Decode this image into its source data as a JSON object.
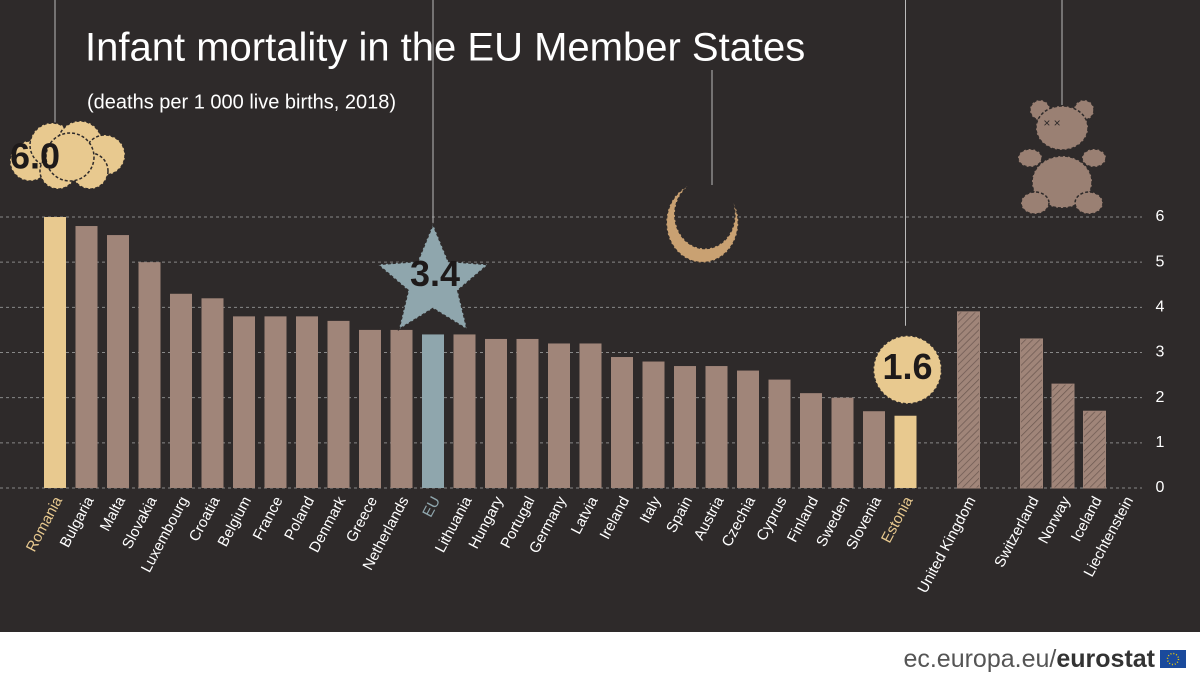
{
  "chart_data": {
    "type": "bar",
    "title": "Infant mortality in the EU Member States",
    "subtitle": "(deaths per 1 000 live births, 2018)",
    "categories": [
      "Romania",
      "Bulgaria",
      "Malta",
      "Slovakia",
      "Luxembourg",
      "Croatia",
      "Belgium",
      "France",
      "Poland",
      "Denmark",
      "Greece",
      "Netherlands",
      "EU",
      "Lithuania",
      "Hungary",
      "Portugal",
      "Germany",
      "Latvia",
      "Ireland",
      "Italy",
      "Spain",
      "Austria",
      "Czechia",
      "Cyprus",
      "Finland",
      "Sweden",
      "Slovenia",
      "Estonia",
      null,
      "United Kingdom",
      null,
      "Switzerland",
      "Norway",
      "Iceland",
      "Liechtenstein"
    ],
    "values": [
      6.0,
      5.8,
      5.6,
      5.0,
      4.3,
      4.2,
      3.8,
      3.8,
      3.8,
      3.7,
      3.5,
      3.5,
      3.4,
      3.4,
      3.3,
      3.3,
      3.2,
      3.2,
      2.9,
      2.8,
      2.7,
      2.7,
      2.6,
      2.4,
      2.1,
      2.0,
      1.7,
      1.6,
      null,
      3.9,
      null,
      3.3,
      2.3,
      1.7,
      0.0
    ],
    "value_labels": [
      "6.0",
      null,
      null,
      null,
      null,
      null,
      null,
      null,
      null,
      null,
      null,
      null,
      "3.4",
      null,
      null,
      null,
      null,
      null,
      null,
      null,
      null,
      null,
      null,
      null,
      null,
      null,
      null,
      "1.6",
      null,
      null,
      null,
      null,
      null,
      null,
      null
    ],
    "color": "#a08579",
    "colors": [
      "#e8c98f",
      "#a08579",
      "#a08579",
      "#a08579",
      "#a08579",
      "#a08579",
      "#a08579",
      "#a08579",
      "#a08579",
      "#a08579",
      "#a08579",
      "#a08579",
      "#8fa6ad",
      "#a08579",
      "#a08579",
      "#a08579",
      "#a08579",
      "#a08579",
      "#a08579",
      "#a08579",
      "#a08579",
      "#a08579",
      "#a08579",
      "#a08579",
      "#a08579",
      "#a08579",
      "#a08579",
      "#e8c98f",
      null,
      "#a08579",
      null,
      "#a08579",
      "#a08579",
      "#a08579",
      "#a08579"
    ],
    "hatched": [
      false,
      false,
      false,
      false,
      false,
      false,
      false,
      false,
      false,
      false,
      false,
      false,
      false,
      false,
      false,
      false,
      false,
      false,
      false,
      false,
      false,
      false,
      false,
      false,
      false,
      false,
      false,
      false,
      null,
      true,
      null,
      true,
      true,
      true,
      true
    ],
    "ylim": [
      0,
      6
    ],
    "yticks": [
      0,
      1,
      2,
      3,
      4,
      5,
      6
    ],
    "grid": true
  },
  "footer": {
    "site": "ec.europa.eu/",
    "brand": "eurostat"
  }
}
